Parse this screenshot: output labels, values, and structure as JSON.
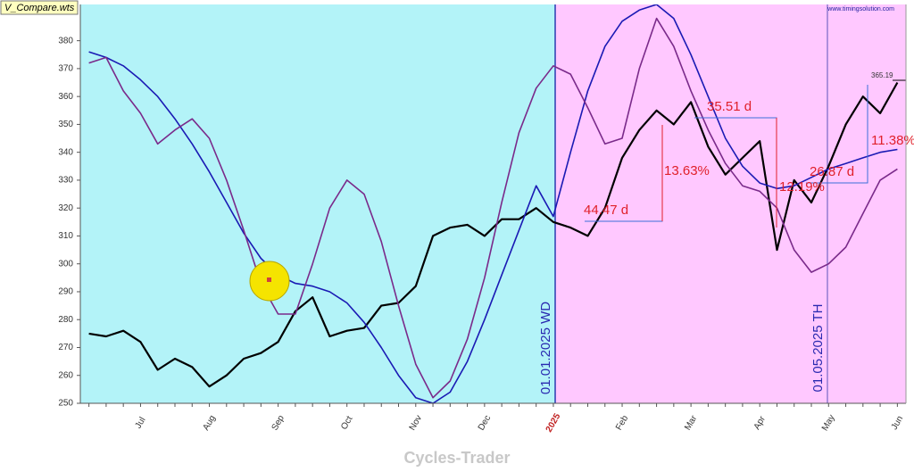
{
  "file_label": "V_Compare.wts",
  "watermark": "www.timingsolution.com",
  "footer": "Cycles-Trader",
  "annotations": {
    "durations": [
      "44.47 d",
      "35.51 d",
      "26.87 d"
    ],
    "changes": [
      "13.63%",
      "12.19%",
      "11.38%"
    ],
    "last_price": "365.19",
    "vlines": [
      "01.01.2025 WD",
      "01.05.2025 TH"
    ]
  },
  "chart_data": {
    "type": "line",
    "categories": [
      null,
      null,
      null,
      "Jul",
      null,
      null,
      null,
      "Aug",
      null,
      null,
      null,
      "Sep",
      null,
      null,
      null,
      "Oct",
      null,
      null,
      null,
      "Nov",
      null,
      null,
      null,
      "Dec",
      null,
      null,
      null,
      "2025",
      null,
      null,
      null,
      "Feb",
      null,
      null,
      null,
      "Mar",
      null,
      null,
      null,
      "Apr",
      null,
      null,
      null,
      "May",
      null,
      null,
      null,
      "Jun"
    ],
    "series": [
      {
        "color": "#000000",
        "values": [
          275,
          274,
          276,
          272,
          262,
          266,
          263,
          256,
          260,
          266,
          268,
          272,
          283,
          288,
          274,
          276,
          277,
          285,
          286,
          292,
          310,
          313,
          314,
          310,
          316,
          316,
          320,
          315,
          313,
          310,
          320,
          338,
          348,
          355,
          350,
          358,
          342,
          332,
          338,
          344,
          305,
          330,
          322,
          335,
          350,
          360,
          354,
          365
        ]
      },
      {
        "color": "#1a1ab4",
        "values": [
          376,
          374,
          371,
          366,
          360,
          352,
          343,
          333,
          322,
          311,
          302,
          296,
          293,
          292,
          290,
          286,
          279,
          270,
          260,
          252,
          250,
          254,
          265,
          280,
          296,
          312,
          328,
          317,
          340,
          362,
          378,
          387,
          391,
          393,
          388,
          375,
          360,
          345,
          335,
          329,
          327,
          328,
          331,
          334,
          336,
          338,
          340,
          341
        ]
      },
      {
        "color": "#7a2a8a",
        "values": [
          372,
          374,
          362,
          354,
          343,
          348,
          352,
          345,
          330,
          312,
          293,
          282,
          282,
          300,
          320,
          330,
          325,
          308,
          285,
          264,
          252,
          258,
          273,
          295,
          322,
          347,
          363,
          371,
          368,
          356,
          343,
          345,
          370,
          388,
          378,
          362,
          348,
          336,
          328,
          326,
          320,
          305,
          297,
          300,
          306,
          318,
          330,
          334
        ]
      }
    ],
    "ylim": [
      250,
      393
    ],
    "yticks": [
      250,
      260,
      270,
      280,
      290,
      300,
      310,
      320,
      330,
      340,
      350,
      360,
      370,
      380
    ]
  }
}
